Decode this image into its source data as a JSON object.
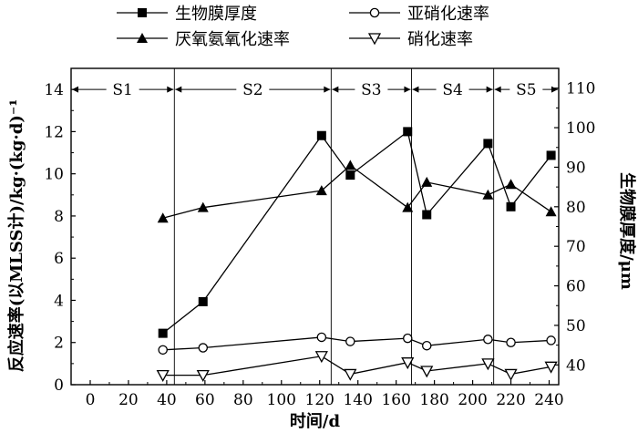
{
  "chart_data": {
    "type": "line",
    "xlabel": "时间/d",
    "ylabel_left": "反应速率(以MLSS计)/kg·(kg·d)⁻¹",
    "ylabel_right": "生物膜厚度/μm",
    "xlim": [
      -10,
      245
    ],
    "ylim_left": [
      0,
      15
    ],
    "ylim_right": [
      35,
      115
    ],
    "x_ticks": [
      "0",
      "20",
      "40",
      "60",
      "80",
      "100",
      "120",
      "140",
      "160",
      "180",
      "200",
      "220",
      "240"
    ],
    "x_tick_values": [
      0,
      20,
      40,
      60,
      80,
      100,
      120,
      140,
      160,
      180,
      200,
      220,
      240
    ],
    "y_left_ticks": [
      "0",
      "2",
      "4",
      "6",
      "8",
      "10",
      "12",
      "14"
    ],
    "y_left_tick_values": [
      0,
      2,
      4,
      6,
      8,
      10,
      12,
      14
    ],
    "y_right_ticks": [
      "40",
      "50",
      "60",
      "70",
      "80",
      "90",
      "100",
      "110"
    ],
    "y_right_tick_values": [
      40,
      50,
      60,
      70,
      80,
      90,
      100,
      110
    ],
    "stages": [
      {
        "label": "S1",
        "start": -10,
        "end": 44
      },
      {
        "label": "S2",
        "start": 44,
        "end": 126
      },
      {
        "label": "S3",
        "start": 126,
        "end": 168
      },
      {
        "label": "S4",
        "start": 168,
        "end": 211
      },
      {
        "label": "S5",
        "start": 211,
        "end": 245
      }
    ],
    "stage_arrow_y": 14,
    "grid": false,
    "legend_position": "top",
    "series": [
      {
        "name": "生物膜厚度",
        "axis": "right",
        "marker": "square",
        "x": [
          38,
          59,
          121,
          136,
          166,
          176,
          208,
          220,
          241
        ],
        "y": [
          48,
          56,
          98,
          88,
          99,
          78,
          96,
          80,
          93
        ]
      },
      {
        "name": "亚硝化速率",
        "axis": "left",
        "marker": "circle-open",
        "x": [
          38,
          59,
          121,
          136,
          166,
          176,
          208,
          220,
          241
        ],
        "y": [
          1.65,
          1.75,
          2.25,
          2.05,
          2.2,
          1.85,
          2.15,
          2.0,
          2.1
        ]
      },
      {
        "name": "厌氧氨氧化速率",
        "axis": "left",
        "marker": "triangle-up",
        "x": [
          38,
          59,
          121,
          136,
          166,
          176,
          208,
          220,
          241
        ],
        "y": [
          7.9,
          8.4,
          9.2,
          10.4,
          8.4,
          9.6,
          9.0,
          9.5,
          8.2
        ]
      },
      {
        "name": "硝化速率",
        "axis": "left",
        "marker": "triangle-down-open",
        "x": [
          38,
          59,
          121,
          136,
          166,
          176,
          208,
          220,
          241
        ],
        "y": [
          0.45,
          0.45,
          1.35,
          0.5,
          1.05,
          0.65,
          1.0,
          0.5,
          0.85
        ]
      }
    ]
  }
}
